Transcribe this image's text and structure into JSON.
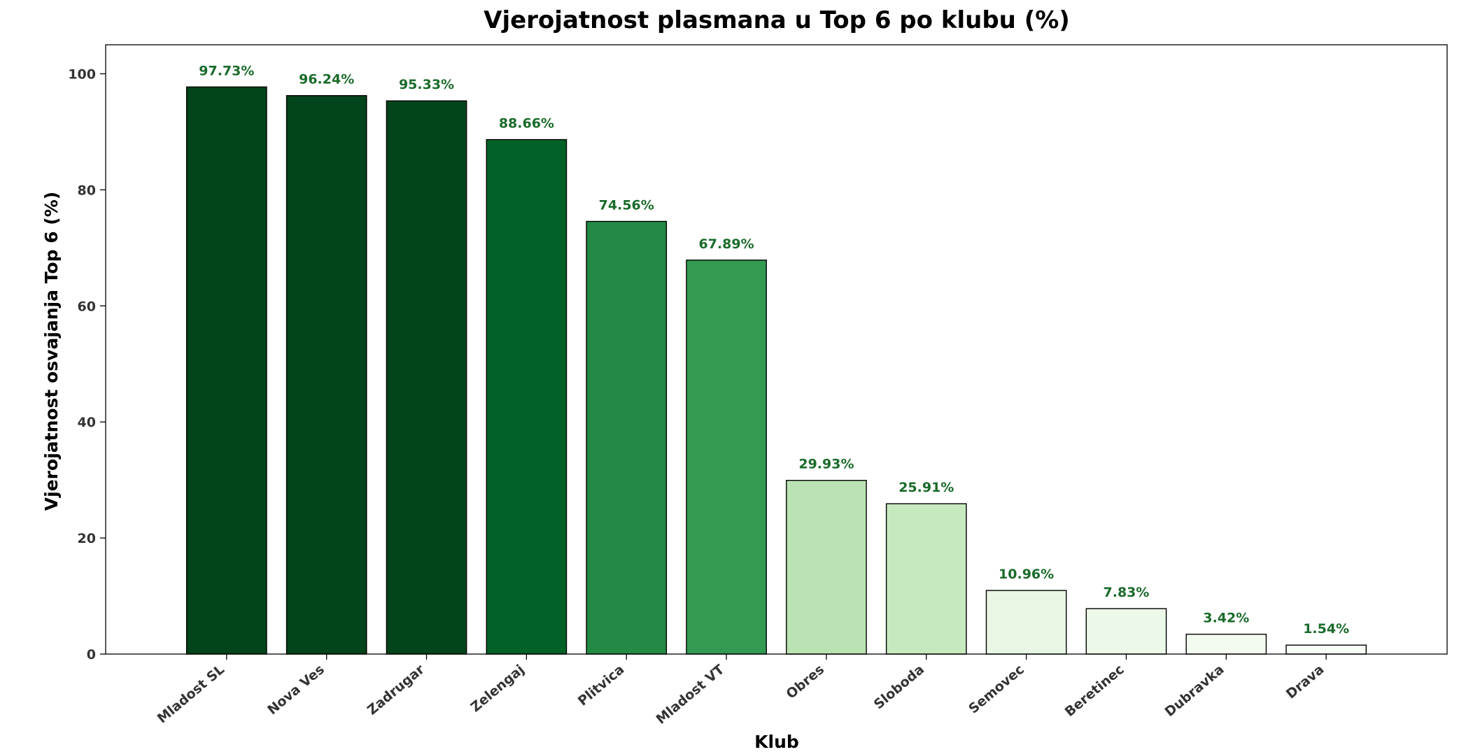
{
  "chart_data": {
    "type": "bar",
    "title": "Vjerojatnost plasmana u Top 6 po klubu (%)",
    "xlabel": "Klub",
    "ylabel": "Vjerojatnost osvajanja Top 6 (%)",
    "categories": [
      "Mladost SL",
      "Nova Ves",
      "Zadrugar",
      "Zelengaj",
      "Plitvica",
      "Mladost VT",
      "Obres",
      "Sloboda",
      "Semovec",
      "Beretinec",
      "Dubravka",
      "Drava"
    ],
    "values": [
      97.73,
      96.24,
      95.33,
      88.66,
      74.56,
      67.89,
      29.93,
      25.91,
      10.96,
      7.83,
      3.42,
      1.54
    ],
    "data_labels": [
      "97.73%",
      "96.24%",
      "95.33%",
      "88.66%",
      "74.56%",
      "67.89%",
      "29.93%",
      "25.91%",
      "10.96%",
      "7.83%",
      "3.42%",
      "1.54%"
    ],
    "bar_colors": [
      "#02441b",
      "#02441b",
      "#02441b",
      "#026127",
      "#228a44",
      "#339a52",
      "#bae3b3",
      "#c7e9c0",
      "#e9f6e4",
      "#ecf8e8",
      "#f3faf0",
      "#f7fcf5"
    ],
    "ylim": [
      0,
      105
    ],
    "yticks": [
      0,
      20,
      40,
      60,
      80,
      100
    ],
    "ytick_labels": [
      "0",
      "20",
      "40",
      "60",
      "80",
      "100"
    ],
    "grid": false,
    "legend": "none",
    "colors": {
      "data_label": "#1a6b2a",
      "tick_label": "#333333",
      "bar_edge": "#000000"
    }
  }
}
